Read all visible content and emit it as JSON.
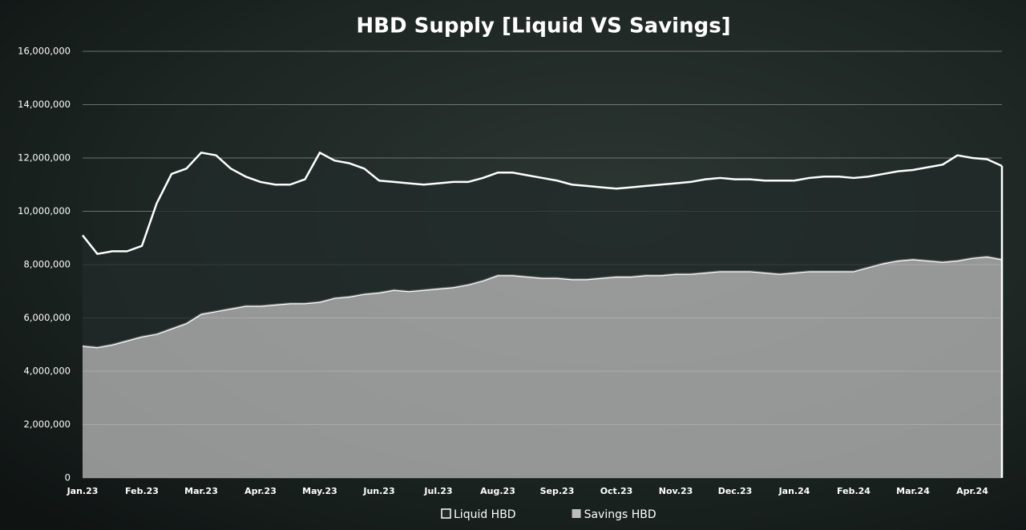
{
  "chart_data": {
    "type": "stacked_area",
    "title": "HBD Supply [Liquid VS Savings]",
    "categories": [
      "Jan.23",
      null,
      null,
      null,
      "Feb.23",
      null,
      null,
      null,
      "Mar.23",
      null,
      null,
      null,
      "Apr.23",
      null,
      null,
      null,
      "May.23",
      null,
      null,
      null,
      "Jun.23",
      null,
      null,
      null,
      "Jul.23",
      null,
      null,
      null,
      "Aug.23",
      null,
      null,
      null,
      "Sep.23",
      null,
      null,
      null,
      "Oct.23",
      null,
      null,
      null,
      "Nov.23",
      null,
      null,
      null,
      "Dec.23",
      null,
      null,
      null,
      "Jan.24",
      null,
      null,
      null,
      "Feb.24",
      null,
      null,
      null,
      "Mar.24",
      null,
      null,
      null,
      "Apr.24",
      null,
      null
    ],
    "series": [
      {
        "name": "Savings HBD",
        "color": "#bdbdbd",
        "values": [
          4950000,
          4900000,
          5000000,
          5150000,
          5300000,
          5400000,
          5600000,
          5800000,
          6150000,
          6250000,
          6350000,
          6450000,
          6450000,
          6500000,
          6550000,
          6550000,
          6600000,
          6750000,
          6800000,
          6900000,
          6950000,
          7050000,
          7000000,
          7050000,
          7100000,
          7150000,
          7250000,
          7400000,
          7600000,
          7600000,
          7550000,
          7500000,
          7500000,
          7450000,
          7450000,
          7500000,
          7550000,
          7550000,
          7600000,
          7600000,
          7650000,
          7650000,
          7700000,
          7750000,
          7750000,
          7750000,
          7700000,
          7650000,
          7700000,
          7750000,
          7750000,
          7750000,
          7750000,
          7900000,
          8050000,
          8150000,
          8200000,
          8150000,
          8100000,
          8150000,
          8250000,
          8300000,
          8200000
        ]
      },
      {
        "name": "Liquid HBD",
        "color": "#222b29",
        "values": [
          4150000,
          3500000,
          3500000,
          3350000,
          3400000,
          4900000,
          5800000,
          5800000,
          6050000,
          5850000,
          5250000,
          4850000,
          4650000,
          4500000,
          4450000,
          4650000,
          5600000,
          5150000,
          5000000,
          4700000,
          4200000,
          4050000,
          4050000,
          3950000,
          3950000,
          3950000,
          3850000,
          3850000,
          3850000,
          3850000,
          3800000,
          3750000,
          3650000,
          3550000,
          3500000,
          3400000,
          3300000,
          3350000,
          3350000,
          3400000,
          3400000,
          3450000,
          3500000,
          3500000,
          3450000,
          3450000,
          3450000,
          3500000,
          3450000,
          3500000,
          3550000,
          3550000,
          3500000,
          3400000,
          3350000,
          3350000,
          3350000,
          3500000,
          3650000,
          3950000,
          3750000,
          3650000,
          3500000
        ]
      }
    ],
    "legend_order": [
      "Liquid HBD",
      "Savings HBD"
    ],
    "ylim": [
      0,
      16000000
    ],
    "yticks": [
      0,
      {
        "value": 2000000,
        "label": "2,000,000"
      },
      {
        "value": 4000000,
        "label": "4,000,000"
      },
      {
        "value": 6000000,
        "label": "6,000,000"
      },
      {
        "value": 8000000,
        "label": "8,000,000"
      },
      {
        "value": 10000000,
        "label": "10,000,000"
      },
      {
        "value": 12000000,
        "label": "12,000,000"
      },
      {
        "value": 14000000,
        "label": "14,000,000"
      },
      {
        "value": 16000000,
        "label": "16,000,000"
      }
    ],
    "grid": true,
    "legend": "bottom"
  }
}
